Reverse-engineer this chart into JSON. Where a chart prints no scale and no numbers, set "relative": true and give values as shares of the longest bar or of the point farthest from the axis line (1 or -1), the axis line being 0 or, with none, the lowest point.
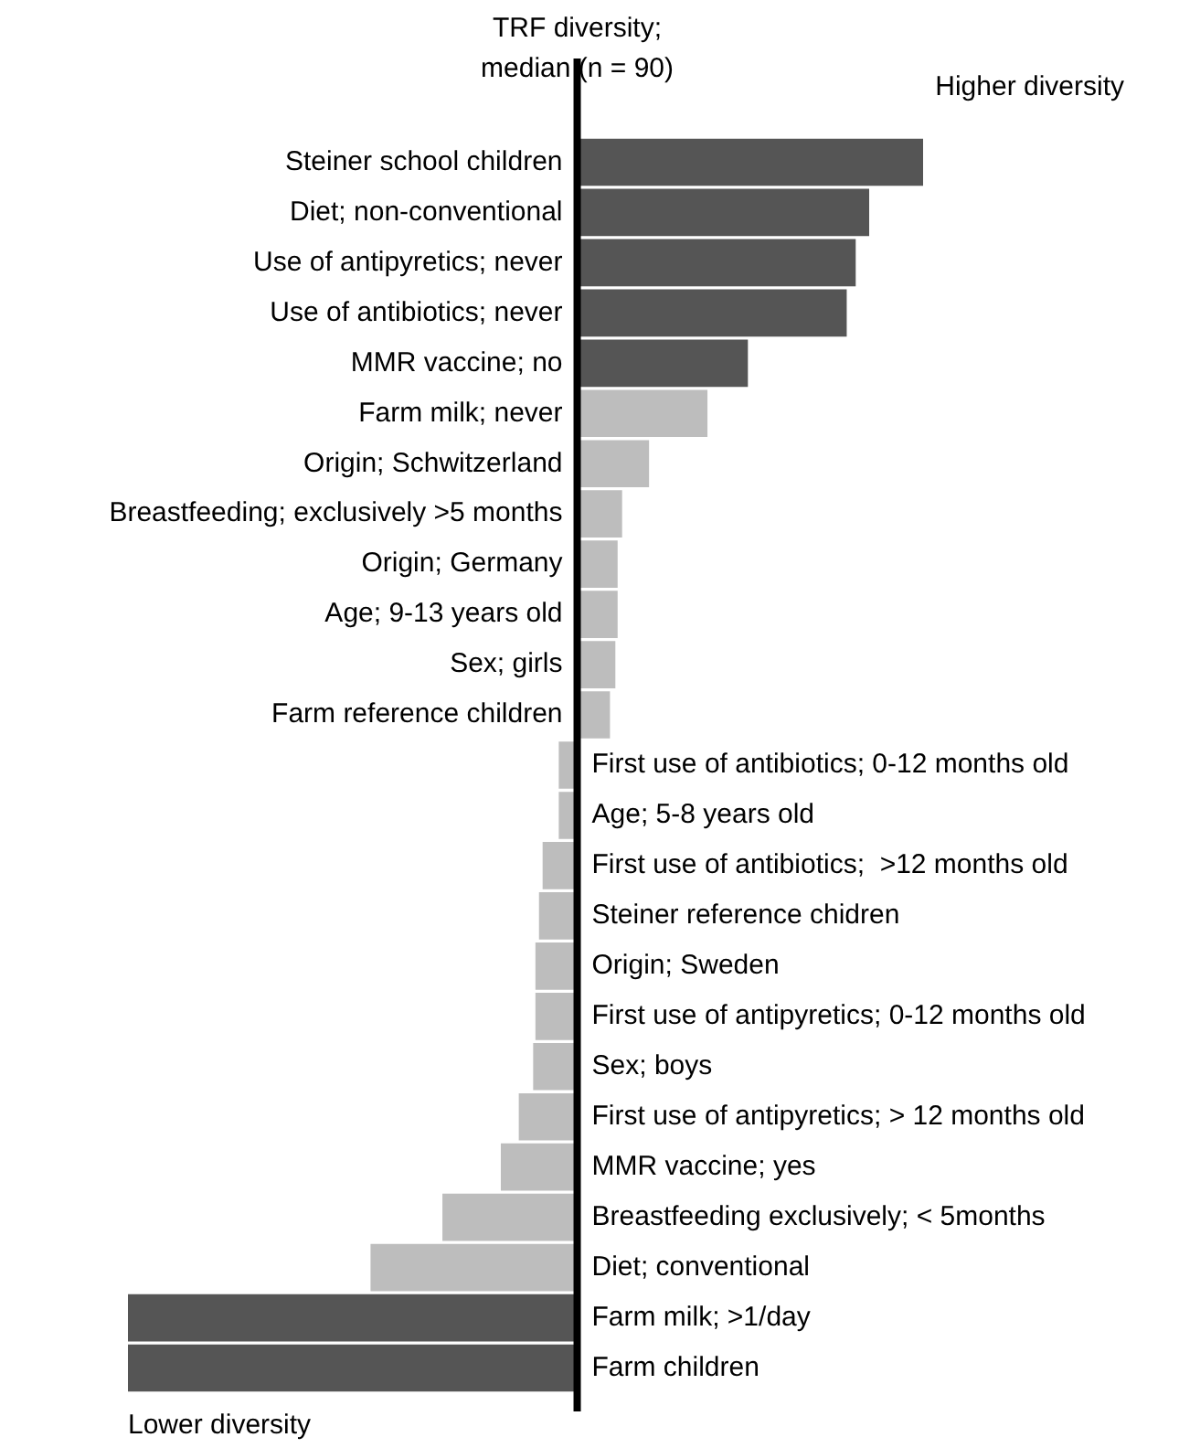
{
  "chart_data": {
    "type": "bar",
    "orientation": "horizontal",
    "relative": true,
    "categories": [
      "Steiner school children",
      "Diet; non-conventional",
      "Use of antipyretics; never",
      "Use of antibiotics; never",
      "MMR vaccine; no",
      "Farm milk; never",
      "Origin; Schwitzerland",
      "Breastfeeding; exclusively >5 months",
      "Origin; Germany",
      "Age; 9-13 years old",
      "Sex; girls",
      "Farm reference children",
      "First use of antibiotics; 0-12 months old",
      "Age; 5-8 years old",
      "First use of antibiotics;  >12 months old",
      "Steiner reference chidren",
      "Origin; Sweden",
      "First use of antipyretics; 0-12 months old",
      "Sex; boys",
      "First use of antipyretics; > 12 months old",
      "MMR vaccine; yes",
      "Breastfeeding exclusively; < 5months",
      "Diet; conventional",
      "Farm milk; >1/day",
      "Farm children"
    ],
    "values": [
      0.77,
      0.65,
      0.62,
      0.6,
      0.38,
      0.29,
      0.16,
      0.1,
      0.09,
      0.09,
      0.085,
      0.073,
      -0.041,
      -0.041,
      -0.077,
      -0.085,
      -0.093,
      -0.093,
      -0.098,
      -0.13,
      -0.17,
      -0.3,
      -0.46,
      -1,
      -1
    ],
    "colors": [
      "#555555",
      "#555555",
      "#555555",
      "#555555",
      "#555555",
      "#bdbdbd",
      "#bdbdbd",
      "#bdbdbd",
      "#bdbdbd",
      "#bdbdbd",
      "#bdbdbd",
      "#bdbdbd",
      "#bdbdbd",
      "#bdbdbd",
      "#bdbdbd",
      "#bdbdbd",
      "#bdbdbd",
      "#bdbdbd",
      "#bdbdbd",
      "#bdbdbd",
      "#bdbdbd",
      "#bdbdbd",
      "#bdbdbd",
      "#555555",
      "#555555"
    ],
    "annotations": [
      "TRF diversity; median (n = 90)",
      "Higher diversity",
      "Lower diversity"
    ],
    "legend": false,
    "tick_labels": false
  }
}
